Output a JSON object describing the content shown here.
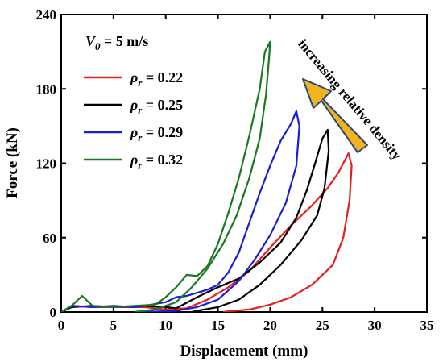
{
  "chart_data": {
    "type": "line",
    "xlabel": "Displacement (mm)",
    "ylabel": "Force (kN)",
    "xlim": [
      0,
      35
    ],
    "ylim": [
      0,
      240
    ],
    "xticks": [
      0,
      5,
      10,
      15,
      20,
      25,
      30,
      35
    ],
    "yticks": [
      0,
      60,
      120,
      180,
      240
    ],
    "grid": false,
    "legend_position": "top-left",
    "legend_title": {
      "symbol": "V",
      "subscript": "0",
      "value": " = 5 m/s"
    },
    "annotation": "increasing relative density",
    "annotation_arrow_color": "#f2b31c",
    "series": [
      {
        "name": "ρr = 0.22",
        "legend": {
          "symbol": "ρ",
          "subscript": "r",
          "value": " = 0.22"
        },
        "color": "#e3201b",
        "loading": [
          [
            0,
            0
          ],
          [
            1,
            5
          ],
          [
            3,
            4
          ],
          [
            5,
            4
          ],
          [
            8,
            4
          ],
          [
            10,
            2
          ],
          [
            12,
            3
          ],
          [
            14,
            10
          ],
          [
            16,
            20
          ],
          [
            18,
            33
          ],
          [
            20,
            52
          ],
          [
            22,
            70
          ],
          [
            24,
            86
          ],
          [
            25.5,
            100
          ],
          [
            26.5,
            112
          ],
          [
            27.5,
            128
          ]
        ],
        "unloading": [
          [
            27.5,
            128
          ],
          [
            27.8,
            118
          ],
          [
            27.6,
            90
          ],
          [
            27,
            60
          ],
          [
            26,
            38
          ],
          [
            24,
            22
          ],
          [
            22,
            12
          ],
          [
            20,
            6
          ],
          [
            18,
            2
          ],
          [
            16,
            0.5
          ],
          [
            15.5,
            0
          ]
        ]
      },
      {
        "name": "ρr = 0.25",
        "legend": {
          "symbol": "ρ",
          "subscript": "r",
          "value": " = 0.25"
        },
        "color": "#000000",
        "loading": [
          [
            0,
            0
          ],
          [
            1,
            4
          ],
          [
            3,
            5
          ],
          [
            5,
            4
          ],
          [
            8,
            5
          ],
          [
            10,
            4
          ],
          [
            11,
            3
          ],
          [
            13,
            12
          ],
          [
            15,
            20
          ],
          [
            17,
            27
          ],
          [
            19,
            40
          ],
          [
            21,
            56
          ],
          [
            22.5,
            76
          ],
          [
            23.5,
            98
          ],
          [
            24.3,
            120
          ],
          [
            25,
            140
          ],
          [
            25.5,
            147
          ]
        ],
        "unloading": [
          [
            25.5,
            147
          ],
          [
            25.6,
            130
          ],
          [
            25.2,
            100
          ],
          [
            24.5,
            78
          ],
          [
            23,
            58
          ],
          [
            21,
            38
          ],
          [
            19,
            22
          ],
          [
            17,
            10
          ],
          [
            15,
            4
          ],
          [
            13,
            1
          ],
          [
            12.5,
            0
          ]
        ]
      },
      {
        "name": "ρr = 0.29",
        "legend": {
          "symbol": "ρ",
          "subscript": "r",
          "value": " = 0.29"
        },
        "color": "#1c1cd4",
        "loading": [
          [
            0,
            0
          ],
          [
            1,
            5
          ],
          [
            3,
            4
          ],
          [
            5,
            5
          ],
          [
            7,
            4
          ],
          [
            8,
            5
          ],
          [
            10,
            8
          ],
          [
            11,
            12
          ],
          [
            12,
            13
          ],
          [
            14,
            18
          ],
          [
            15,
            22
          ],
          [
            16,
            32
          ],
          [
            17,
            48
          ],
          [
            18,
            72
          ],
          [
            19,
            96
          ],
          [
            20,
            118
          ],
          [
            21,
            138
          ],
          [
            22,
            152
          ],
          [
            22.5,
            162
          ]
        ],
        "unloading": [
          [
            22.5,
            162
          ],
          [
            22.8,
            150
          ],
          [
            22.5,
            118
          ],
          [
            21.5,
            88
          ],
          [
            20,
            62
          ],
          [
            18.5,
            42
          ],
          [
            17,
            25
          ],
          [
            15,
            10
          ],
          [
            13,
            4
          ],
          [
            11,
            1
          ],
          [
            8,
            0
          ],
          [
            7.5,
            0
          ]
        ]
      },
      {
        "name": "ρr = 0.32",
        "legend": {
          "symbol": "ρ",
          "subscript": "r",
          "value": " = 0.32"
        },
        "color": "#187a1e",
        "loading": [
          [
            0,
            0
          ],
          [
            1,
            5
          ],
          [
            2,
            13
          ],
          [
            3,
            5
          ],
          [
            5,
            4
          ],
          [
            7,
            5
          ],
          [
            9,
            6
          ],
          [
            10,
            12
          ],
          [
            11,
            20
          ],
          [
            12,
            30
          ],
          [
            13,
            29
          ],
          [
            14,
            37
          ],
          [
            15,
            55
          ],
          [
            16,
            80
          ],
          [
            17,
            108
          ],
          [
            18,
            142
          ],
          [
            19,
            180
          ],
          [
            19.5,
            210
          ],
          [
            20,
            218
          ]
        ],
        "unloading": [
          [
            20,
            218
          ],
          [
            19.9,
            205
          ],
          [
            19.6,
            175
          ],
          [
            19,
            140
          ],
          [
            18,
            108
          ],
          [
            16.8,
            78
          ],
          [
            15.5,
            55
          ],
          [
            14,
            35
          ],
          [
            12.5,
            20
          ],
          [
            11,
            8
          ],
          [
            9,
            2
          ],
          [
            7,
            0
          ]
        ]
      }
    ]
  }
}
